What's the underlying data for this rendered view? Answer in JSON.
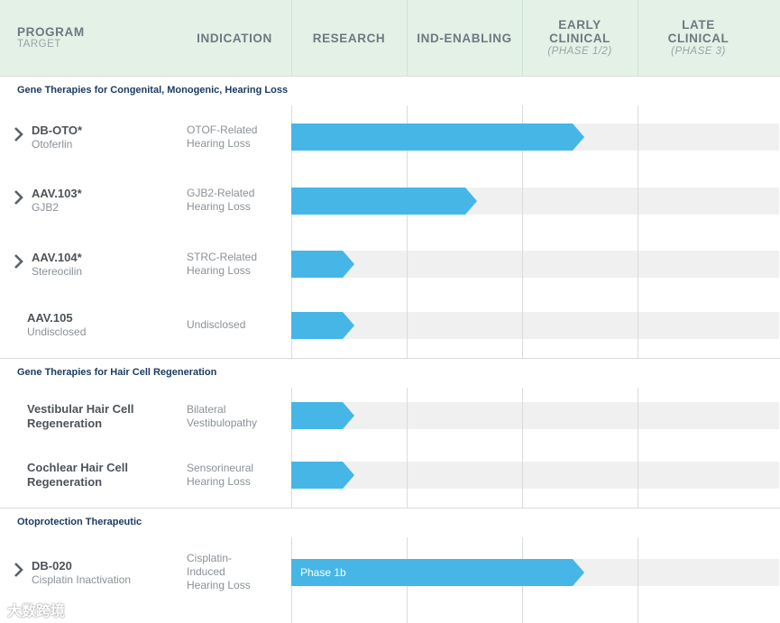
{
  "header": {
    "program": "PROGRAM",
    "target": "TARGET",
    "indication": "INDICATION",
    "research": "RESEARCH",
    "ind_enabling": "IND-ENABLING",
    "early_line1": "EARLY",
    "early_line2": "CLINICAL",
    "early_sub": "(PHASE 1/2)",
    "late_line1": "LATE",
    "late_line2": "CLINICAL",
    "late_sub": "(PHASE 3)"
  },
  "sections": [
    {
      "title": "Gene Therapies for Congenital, Monogenic, Hearing Loss"
    },
    {
      "title": "Gene Therapies for Hair Cell Regeneration"
    },
    {
      "title": "Otoprotection Therapeutic"
    }
  ],
  "programs": [
    {
      "name": "DB-OTO*",
      "target": "Otoferlin",
      "indication_1": "OTOF-Related",
      "indication_2": "Hearing Loss",
      "progress": 0.6
    },
    {
      "name": "AAV.103*",
      "target": "GJB2",
      "indication_1": "GJB2-Related",
      "indication_2": "Hearing Loss",
      "progress": 0.38
    },
    {
      "name": "AAV.104*",
      "target": "Stereocilin",
      "indication_1": "STRC-Related",
      "indication_2": "Hearing Loss",
      "progress": 0.13
    },
    {
      "name": "AAV.105",
      "target": "Undisclosed",
      "indication_1": "Undisclosed",
      "progress": 0.13
    },
    {
      "name_1": "Vestibular Hair Cell",
      "name_2": "Regeneration",
      "indication_1": "Bilateral",
      "indication_2": "Vestibulopathy",
      "progress": 0.13
    },
    {
      "name_1": "Cochlear Hair Cell",
      "name_2": "Regeneration",
      "indication_1": "Sensorineural",
      "indication_2": "Hearing Loss",
      "progress": 0.13
    },
    {
      "name": "DB-020",
      "target": "Cisplatin Inactivation",
      "indication_1": "Cisplatin-",
      "indication_2": "Induced",
      "indication_3": "Hearing Loss",
      "progress": 0.6,
      "bar_label": "Phase 1b"
    }
  ],
  "watermark": "大数跨境",
  "colors": {
    "header_bg": "#e3f1e7",
    "bar": "#46b6e6",
    "band": "#f0f0f0",
    "section_text": "#1c3c63"
  }
}
